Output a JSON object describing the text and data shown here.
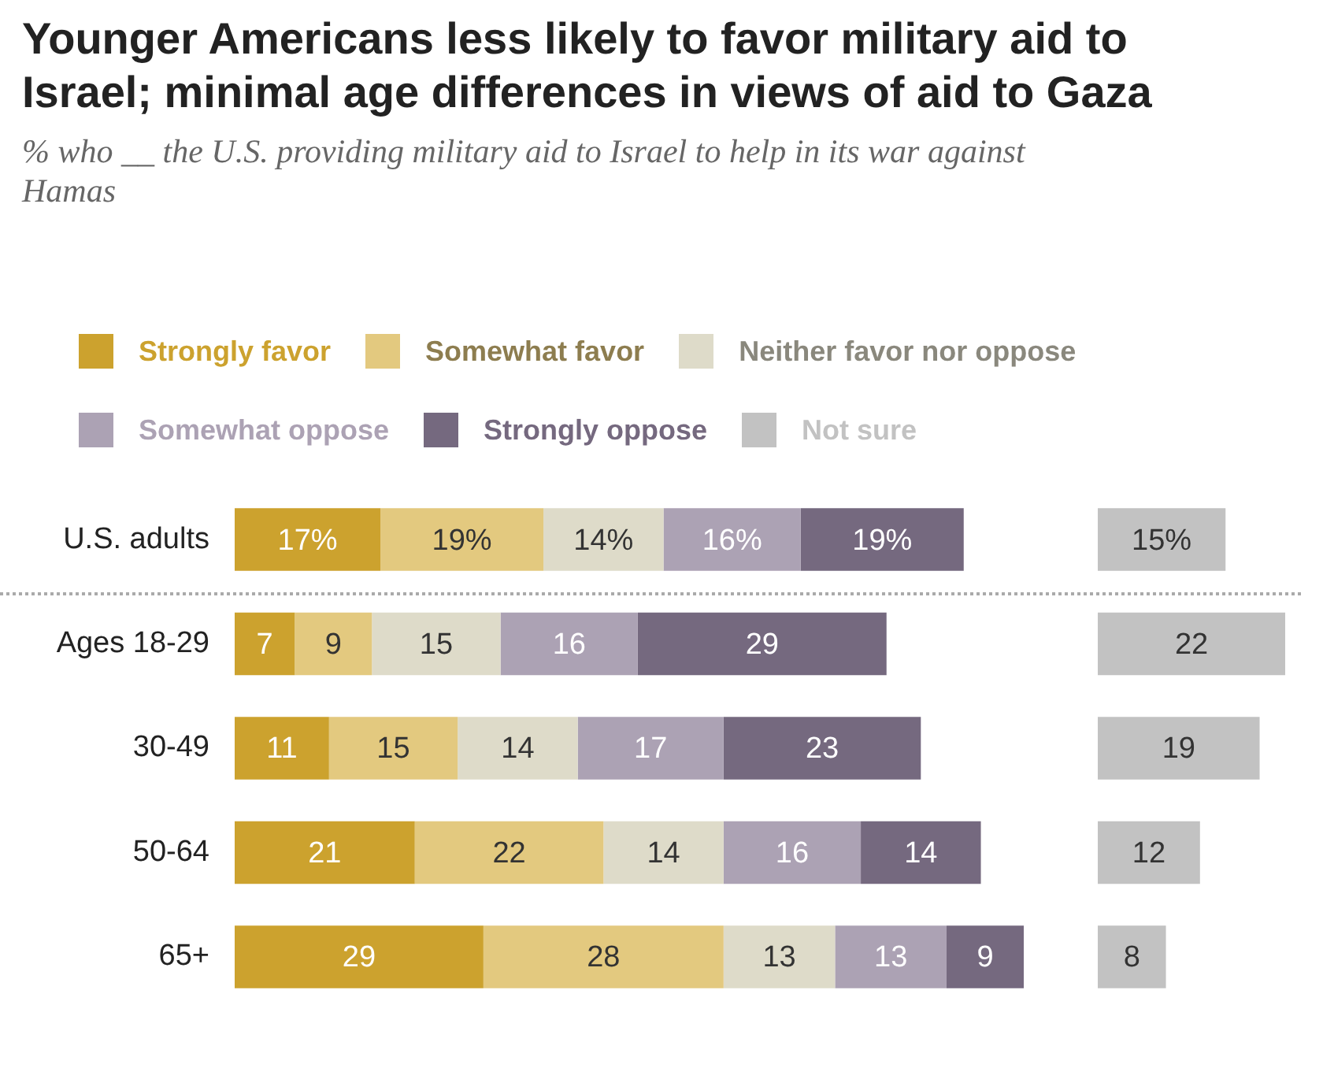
{
  "chart_data": [
    {
      "type": "bar",
      "orientation": "horizontal",
      "stacked": true,
      "title": "Younger Americans less likely to favor military aid to Israel; minimal age differences in views of aid to Gaza",
      "subtitle": "% who __ the U.S. providing military aid to Israel to help in its war against Hamas",
      "categories": [
        "U.S. adults",
        "Ages 18-29",
        "30-49",
        "50-64",
        "65+"
      ],
      "tick_labels": "y",
      "legend": "top",
      "series": [
        {
          "name": "Strongly favor",
          "color": "#cca22e",
          "values": [
            17,
            7,
            11,
            21,
            29
          ],
          "value_labels": [
            "17%",
            "7",
            "11",
            "21",
            "29"
          ]
        },
        {
          "name": "Somewhat favor",
          "color": "#e3c97f",
          "values": [
            19,
            9,
            15,
            22,
            28
          ],
          "value_labels": [
            "19%",
            "9",
            "15",
            "22",
            "28"
          ]
        },
        {
          "name": "Neither favor nor oppose",
          "color": "#dedbc9",
          "values": [
            14,
            15,
            14,
            14,
            13
          ],
          "value_labels": [
            "14%",
            "15",
            "14",
            "14",
            "13"
          ]
        },
        {
          "name": "Somewhat oppose",
          "color": "#aca2b4",
          "values": [
            16,
            16,
            17,
            16,
            13
          ],
          "value_labels": [
            "16%",
            "16",
            "17",
            "16",
            "13"
          ]
        },
        {
          "name": "Strongly oppose",
          "color": "#75697f",
          "values": [
            19,
            29,
            23,
            14,
            9
          ],
          "value_labels": [
            "19%",
            "29",
            "23",
            "14",
            "9"
          ]
        }
      ]
    },
    {
      "type": "bar",
      "orientation": "horizontal",
      "tick_labels": false,
      "legend": "top",
      "series": [
        {
          "name": "Not sure",
          "color": "#c2c2c2",
          "values": [
            15,
            22,
            19,
            12,
            8
          ],
          "value_labels": [
            "15%",
            "22",
            "19",
            "12",
            "8"
          ]
        }
      ]
    }
  ]
}
